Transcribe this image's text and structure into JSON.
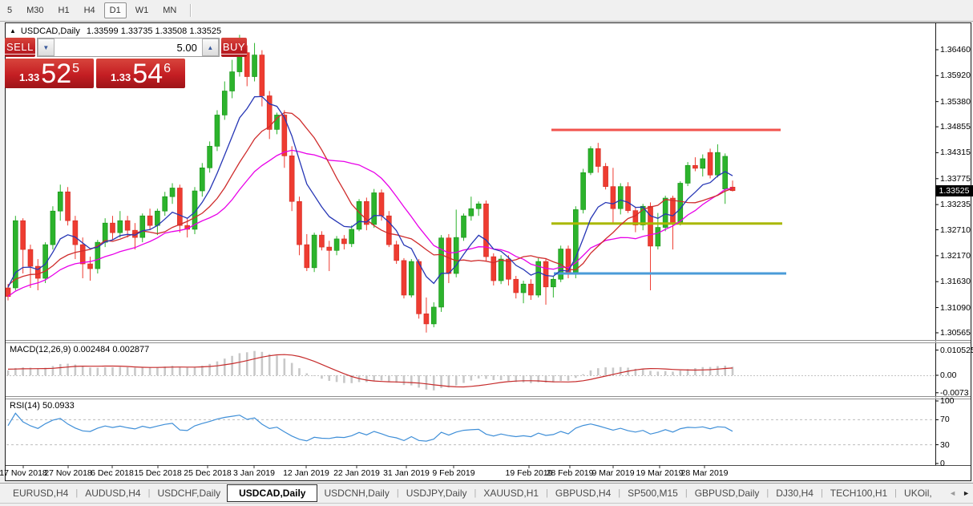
{
  "toolbar": {
    "timeframes": [
      "5",
      "M30",
      "H1",
      "H4",
      "D1",
      "W1",
      "MN"
    ],
    "active": "D1"
  },
  "window": {
    "title_marker": "▲",
    "title_symbol": "USDCAD,Daily",
    "title_ohlc": "1.33599 1.33735 1.33508 1.33525"
  },
  "trade_panel": {
    "sell_label": "SELL",
    "buy_label": "BUY",
    "volume": "5.00",
    "spinner_down": "▼",
    "spinner_up": "▲",
    "bid": {
      "prefix": "1.33",
      "big": "52",
      "sup": "5"
    },
    "ask": {
      "prefix": "1.33",
      "big": "54",
      "sup": "6"
    }
  },
  "chart_data": {
    "type": "candlestick",
    "symbol": "USDCAD",
    "timeframe": "Daily",
    "last_ohlc": {
      "open": 1.33599,
      "high": 1.33735,
      "low": 1.33508,
      "close": 1.33525
    },
    "price_axis": {
      "ticks": [
        "1.36460",
        "1.35920",
        "1.35380",
        "1.34855",
        "1.34315",
        "1.33775",
        "1.33235",
        "1.32710",
        "1.32170",
        "1.31630",
        "1.31090",
        "1.30565"
      ],
      "current": "1.33525"
    },
    "x_labels": [
      "17 Nov 2018",
      "27 Nov 2018",
      "6 Dec 2018",
      "15 Dec 2018",
      "25 Dec 2018",
      "3 Jan 2019",
      "12 Jan 2019",
      "22 Jan 2019",
      "31 Jan 2019",
      "9 Feb 2019",
      "19 Feb 2019",
      "28 Feb 2019",
      "9 Mar 2019",
      "19 Mar 2019",
      "28 Mar 2019"
    ],
    "indicator_warmup": [
      1.306,
      1.3075,
      1.307,
      1.309,
      1.3105,
      1.31,
      1.312,
      1.3135,
      1.313,
      1.315,
      1.3145,
      1.316,
      1.3155,
      1.317,
      1.3165,
      1.318,
      1.317,
      1.316,
      1.315,
      1.3155
    ],
    "candles": [
      [
        1.315,
        1.3158,
        1.3124,
        1.3132
      ],
      [
        1.315,
        1.33,
        1.3145,
        1.329
      ],
      [
        1.329,
        1.3295,
        1.318,
        1.323
      ],
      [
        1.323,
        1.324,
        1.315,
        1.3195
      ],
      [
        1.3195,
        1.321,
        1.3145,
        1.317
      ],
      [
        1.317,
        1.3245,
        1.316,
        1.324
      ],
      [
        1.324,
        1.332,
        1.323,
        1.331
      ],
      [
        1.331,
        1.3365,
        1.329,
        1.335
      ],
      [
        1.335,
        1.336,
        1.328,
        1.329
      ],
      [
        1.329,
        1.33,
        1.321,
        1.324
      ],
      [
        1.324,
        1.3255,
        1.317,
        1.32
      ],
      [
        1.32,
        1.3215,
        1.3165,
        1.319
      ],
      [
        1.319,
        1.325,
        1.318,
        1.3245
      ],
      [
        1.3245,
        1.3295,
        1.3235,
        1.3285
      ],
      [
        1.3285,
        1.33,
        1.325,
        1.3265
      ],
      [
        1.3265,
        1.331,
        1.3255,
        1.329
      ],
      [
        1.329,
        1.33,
        1.3255,
        1.327
      ],
      [
        1.327,
        1.3285,
        1.323,
        1.3255
      ],
      [
        1.3255,
        1.3305,
        1.3245,
        1.33
      ],
      [
        1.33,
        1.3315,
        1.327,
        1.328
      ],
      [
        1.328,
        1.3315,
        1.326,
        1.331
      ],
      [
        1.331,
        1.335,
        1.33,
        1.334
      ],
      [
        1.334,
        1.3368,
        1.3325,
        1.3358
      ],
      [
        1.3358,
        1.3365,
        1.3265,
        1.328
      ],
      [
        1.328,
        1.3295,
        1.3255,
        1.3272
      ],
      [
        1.3272,
        1.336,
        1.3262,
        1.3352
      ],
      [
        1.3352,
        1.341,
        1.334,
        1.34
      ],
      [
        1.34,
        1.3455,
        1.339,
        1.3445
      ],
      [
        1.3445,
        1.352,
        1.3435,
        1.351
      ],
      [
        1.351,
        1.358,
        1.35,
        1.356
      ],
      [
        1.356,
        1.3625,
        1.3545,
        1.36
      ],
      [
        1.36,
        1.3677,
        1.359,
        1.364
      ],
      [
        1.364,
        1.3655,
        1.357,
        1.359
      ],
      [
        1.359,
        1.366,
        1.358,
        1.3635
      ],
      [
        1.3635,
        1.3645,
        1.3528,
        1.355
      ],
      [
        1.355,
        1.356,
        1.346,
        1.348
      ],
      [
        1.348,
        1.3515,
        1.347,
        1.351
      ],
      [
        1.351,
        1.352,
        1.34,
        1.3425
      ],
      [
        1.3425,
        1.3445,
        1.331,
        1.333
      ],
      [
        1.333,
        1.334,
        1.3218,
        1.324
      ],
      [
        1.324,
        1.3262,
        1.3185,
        1.3192
      ],
      [
        1.3192,
        1.3265,
        1.3183,
        1.326
      ],
      [
        1.326,
        1.3268,
        1.3228,
        1.3235
      ],
      [
        1.3235,
        1.3248,
        1.3185,
        1.3228
      ],
      [
        1.3228,
        1.3258,
        1.3218,
        1.3252
      ],
      [
        1.3252,
        1.326,
        1.323,
        1.3242
      ],
      [
        1.3242,
        1.328,
        1.3235,
        1.3272
      ],
      [
        1.3272,
        1.3335,
        1.3268,
        1.333
      ],
      [
        1.333,
        1.3338,
        1.327,
        1.3282
      ],
      [
        1.3282,
        1.3356,
        1.3275,
        1.3348
      ],
      [
        1.3348,
        1.3355,
        1.329,
        1.33
      ],
      [
        1.33,
        1.331,
        1.3235,
        1.324
      ],
      [
        1.324,
        1.3248,
        1.32,
        1.3207
      ],
      [
        1.3207,
        1.3212,
        1.3128,
        1.3135
      ],
      [
        1.3135,
        1.321,
        1.313,
        1.3205
      ],
      [
        1.3205,
        1.321,
        1.3086,
        1.3096
      ],
      [
        1.3096,
        1.313,
        1.3057,
        1.3075
      ],
      [
        1.3075,
        1.312,
        1.3068,
        1.311
      ],
      [
        1.311,
        1.326,
        1.31,
        1.3254
      ],
      [
        1.3254,
        1.3262,
        1.316,
        1.318
      ],
      [
        1.318,
        1.3313,
        1.3172,
        1.3255
      ],
      [
        1.3255,
        1.3305,
        1.3248,
        1.33
      ],
      [
        1.33,
        1.334,
        1.329,
        1.3315
      ],
      [
        1.3315,
        1.333,
        1.33,
        1.3325
      ],
      [
        1.3325,
        1.3332,
        1.3205,
        1.3215
      ],
      [
        1.3215,
        1.3222,
        1.3155,
        1.3165
      ],
      [
        1.3165,
        1.3218,
        1.3158,
        1.321
      ],
      [
        1.321,
        1.3218,
        1.3155,
        1.3168
      ],
      [
        1.3168,
        1.3175,
        1.3128,
        1.314
      ],
      [
        1.314,
        1.3165,
        1.3118,
        1.3158
      ],
      [
        1.3158,
        1.3168,
        1.3125,
        1.3135
      ],
      [
        1.3135,
        1.3212,
        1.313,
        1.3205
      ],
      [
        1.3205,
        1.3212,
        1.3115,
        1.3152
      ],
      [
        1.3152,
        1.3175,
        1.313,
        1.3168
      ],
      [
        1.3168,
        1.3238,
        1.3162,
        1.3231
      ],
      [
        1.3231,
        1.3238,
        1.317,
        1.3178
      ],
      [
        1.3178,
        1.332,
        1.317,
        1.3313
      ],
      [
        1.3313,
        1.3398,
        1.3305,
        1.339
      ],
      [
        1.339,
        1.3445,
        1.3385,
        1.344
      ],
      [
        1.344,
        1.3452,
        1.339,
        1.3403
      ],
      [
        1.3403,
        1.341,
        1.3355,
        1.3361
      ],
      [
        1.3361,
        1.34,
        1.3282,
        1.3315
      ],
      [
        1.3315,
        1.3368,
        1.3303,
        1.3361
      ],
      [
        1.3361,
        1.337,
        1.3306,
        1.3311
      ],
      [
        1.3311,
        1.3318,
        1.3266,
        1.3281
      ],
      [
        1.3281,
        1.3325,
        1.327,
        1.332
      ],
      [
        1.332,
        1.3328,
        1.3145,
        1.3237
      ],
      [
        1.3237,
        1.3306,
        1.323,
        1.3276
      ],
      [
        1.3276,
        1.3342,
        1.3268,
        1.3337
      ],
      [
        1.3337,
        1.3342,
        1.323,
        1.3285
      ],
      [
        1.3285,
        1.3372,
        1.328,
        1.3368
      ],
      [
        1.3368,
        1.3412,
        1.3362,
        1.3405
      ],
      [
        1.3405,
        1.3422,
        1.3393,
        1.3399
      ],
      [
        1.3399,
        1.3428,
        1.3382,
        1.3419
      ],
      [
        1.3432,
        1.344,
        1.3378,
        1.3385
      ],
      [
        1.3385,
        1.3449,
        1.338,
        1.3432
      ],
      [
        1.3356,
        1.343,
        1.3325,
        1.3424
      ],
      [
        1.33599,
        1.33735,
        1.33508,
        1.33525
      ]
    ],
    "overlays": {
      "ma_fast": {
        "type": "ema",
        "period": 8,
        "color": "#2636b5"
      },
      "ma_mid": {
        "type": "sma",
        "period": 13,
        "color": "#cf2c2c"
      },
      "ma_slow": {
        "type": "sma",
        "period": 21,
        "color": "#e800e8"
      },
      "hlines": [
        {
          "price": 1.3479,
          "color": "#f2534d"
        },
        {
          "price": 1.3284,
          "color": "#aab800"
        },
        {
          "price": 1.318,
          "color": "#4a9bd8"
        }
      ]
    },
    "macd": {
      "label": "MACD(12,26,9) 0.002484 0.002877",
      "params": [
        12,
        26,
        9
      ],
      "value": 0.002484,
      "signal_value": 0.002877,
      "axis_ticks": [
        "0.010525",
        "0.00",
        "-0.0073"
      ],
      "hist_color": "#c8c8c8",
      "signal_color": "#c62b2b"
    },
    "rsi": {
      "label": "RSI(14) 50.0933",
      "period": 14,
      "value": 50.0933,
      "axis_ticks": [
        "100",
        "70",
        "30",
        "0"
      ],
      "levels": [
        70,
        30
      ],
      "line_color": "#3f8fd8"
    },
    "colors": {
      "bull": "#2cb32c",
      "bull_border": "#149214",
      "bear": "#ee3c31",
      "bear_border": "#d32a20",
      "badge_bg": "#000000",
      "badge_fg": "#ffffff"
    }
  },
  "tabs": {
    "items": [
      "EURUSD,H4",
      "AUDUSD,H4",
      "USDCHF,Daily",
      "USDCAD,Daily",
      "USDCNH,Daily",
      "USDJPY,Daily",
      "XAUUSD,H1",
      "GBPUSD,H4",
      "SP500,M15",
      "GBPUSD,Daily",
      "DJ30,H4",
      "TECH100,H1",
      "UKOil,"
    ],
    "active_index": 3,
    "scroll_left": "◄",
    "scroll_right": "►"
  }
}
